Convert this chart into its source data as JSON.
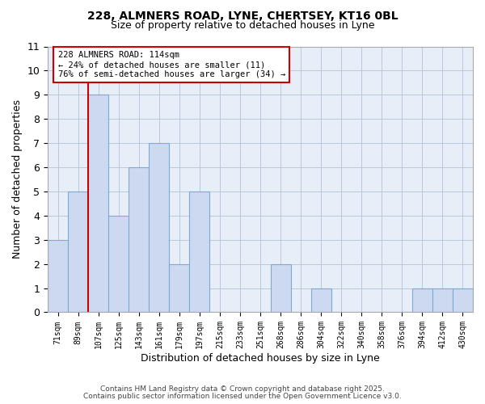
{
  "title1": "228, ALMNERS ROAD, LYNE, CHERTSEY, KT16 0BL",
  "title2": "Size of property relative to detached houses in Lyne",
  "xlabel": "Distribution of detached houses by size in Lyne",
  "ylabel": "Number of detached properties",
  "bin_labels": [
    "71sqm",
    "89sqm",
    "107sqm",
    "125sqm",
    "143sqm",
    "161sqm",
    "179sqm",
    "197sqm",
    "215sqm",
    "233sqm",
    "251sqm",
    "268sqm",
    "286sqm",
    "304sqm",
    "322sqm",
    "340sqm",
    "358sqm",
    "376sqm",
    "394sqm",
    "412sqm",
    "430sqm"
  ],
  "bar_values": [
    3,
    5,
    9,
    4,
    6,
    7,
    2,
    5,
    0,
    0,
    0,
    2,
    0,
    1,
    0,
    0,
    0,
    0,
    1,
    1,
    1
  ],
  "bar_color": "#ccd9f0",
  "bar_edge_color": "#7baad4",
  "ylim": [
    0,
    11
  ],
  "red_line_bar_index": 2,
  "annotation_text": "228 ALMNERS ROAD: 114sqm\n← 24% of detached houses are smaller (11)\n76% of semi-detached houses are larger (34) →",
  "annotation_box_color": "#ffffff",
  "annotation_box_edge": "#cc0000",
  "footer1": "Contains HM Land Registry data © Crown copyright and database right 2025.",
  "footer2": "Contains public sector information licensed under the Open Government Licence v3.0.",
  "bg_color": "#e8eef8"
}
